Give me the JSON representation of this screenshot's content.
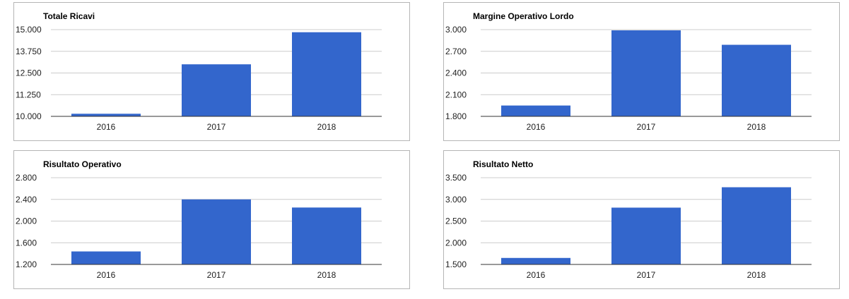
{
  "colors": {
    "bar": "#3366cc",
    "grid": "#cccccc",
    "baseline": "#333333"
  },
  "chart_data": [
    {
      "type": "bar",
      "title": "Totale Ricavi",
      "categories": [
        "2016",
        "2017",
        "2018"
      ],
      "values": [
        10150,
        13000,
        14850
      ],
      "ylim": [
        10000,
        15000
      ],
      "yticks": [
        10000,
        11250,
        12500,
        13750,
        15000
      ],
      "ytick_labels": [
        "10.000",
        "11.250",
        "12.500",
        "13.750",
        "15.000"
      ],
      "grid": true,
      "legend": "none"
    },
    {
      "type": "bar",
      "title": "Margine Operativo Lordo",
      "categories": [
        "2016",
        "2017",
        "2018"
      ],
      "values": [
        1950,
        2990,
        2790
      ],
      "ylim": [
        1800,
        3000
      ],
      "yticks": [
        1800,
        2100,
        2400,
        2700,
        3000
      ],
      "ytick_labels": [
        "1.800",
        "2.100",
        "2.400",
        "2.700",
        "3.000"
      ],
      "grid": true,
      "legend": "none"
    },
    {
      "type": "bar",
      "title": "Risultato Operativo",
      "categories": [
        "2016",
        "2017",
        "2018"
      ],
      "values": [
        1440,
        2400,
        2250
      ],
      "ylim": [
        1200,
        2800
      ],
      "yticks": [
        1200,
        1600,
        2000,
        2400,
        2800
      ],
      "ytick_labels": [
        "1.200",
        "1.600",
        "2.000",
        "2.400",
        "2.800"
      ],
      "grid": true,
      "legend": "none"
    },
    {
      "type": "bar",
      "title": "Risultato Netto",
      "categories": [
        "2016",
        "2017",
        "2018"
      ],
      "values": [
        1650,
        2810,
        3280
      ],
      "ylim": [
        1500,
        3500
      ],
      "yticks": [
        1500,
        2000,
        2500,
        3000,
        3500
      ],
      "ytick_labels": [
        "1.500",
        "2.000",
        "2.500",
        "3.000",
        "3.500"
      ],
      "grid": true,
      "legend": "none"
    }
  ]
}
